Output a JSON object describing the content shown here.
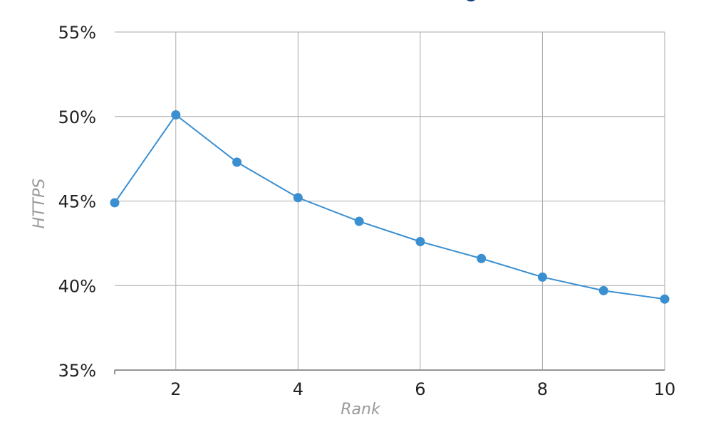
{
  "chart_data": {
    "type": "line",
    "title": "",
    "xlabel": "Rank",
    "ylabel": "HTTPS",
    "x": [
      1,
      2,
      3,
      4,
      5,
      6,
      7,
      8,
      9,
      10
    ],
    "series": [
      {
        "values": [
          44.9,
          50.1,
          47.3,
          45.2,
          43.8,
          42.6,
          41.6,
          40.5,
          39.7,
          39.2
        ]
      }
    ],
    "xlim": [
      1,
      10
    ],
    "ylim": [
      35,
      55
    ],
    "x_ticks": [
      2,
      4,
      6,
      8,
      10
    ],
    "x_tick_labels": [
      "2",
      "4",
      "6",
      "8",
      "10"
    ],
    "y_ticks": [
      35,
      40,
      45,
      50,
      55
    ],
    "y_tick_labels": [
      "35%",
      "40%",
      "45%",
      "50%",
      "55%"
    ],
    "grid": true,
    "colors": {
      "series": "#3a8fd1",
      "grid": "#aaaaaa",
      "axis": "#555555",
      "legend_dot": "#0d3b7a"
    }
  }
}
